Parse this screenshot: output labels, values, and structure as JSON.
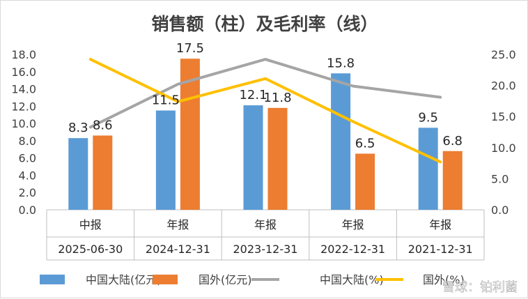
{
  "chart_data": {
    "type": "bar+line",
    "title": "销售额（柱）及毛利率（线）",
    "categories": [
      {
        "period": "中报",
        "date": "2025-06-30"
      },
      {
        "period": "年报",
        "date": "2024-12-31"
      },
      {
        "period": "年报",
        "date": "2023-12-31"
      },
      {
        "period": "年报",
        "date": "2022-12-31"
      },
      {
        "period": "年报",
        "date": "2021-12-31"
      }
    ],
    "bar_series": [
      {
        "name": "中国大陆(亿元)",
        "color": "#5b9bd5",
        "values": [
          8.3,
          11.5,
          12.1,
          15.8,
          9.5
        ],
        "labels": [
          "8.3",
          "11.5",
          "12.1",
          "15.8",
          "9.5"
        ]
      },
      {
        "name": "国外(亿元)",
        "color": "#ed7d31",
        "values": [
          8.6,
          17.5,
          11.8,
          6.5,
          6.8
        ],
        "labels": [
          "8.6",
          "17.5",
          "11.8",
          "6.5",
          "6.8"
        ]
      }
    ],
    "line_series": [
      {
        "name": "中国大陆(%)",
        "color": "#a5a5a5",
        "values": [
          13.3,
          20.2,
          24.2,
          19.9,
          18.1
        ]
      },
      {
        "name": "国外(%)",
        "color": "#ffc000",
        "values": [
          24.2,
          17.4,
          21.1,
          14.2,
          7.7
        ]
      }
    ],
    "y_left": {
      "min": 0,
      "max": 18,
      "step": 2,
      "tick_labels": [
        "0.0",
        "2.0",
        "4.0",
        "6.0",
        "8.0",
        "10.0",
        "12.0",
        "14.0",
        "16.0",
        "18.0"
      ]
    },
    "y_right": {
      "min": 0,
      "max": 25,
      "step": 5,
      "tick_labels": [
        "0.0",
        "5.0",
        "10.0",
        "15.0",
        "20.0",
        "25.0"
      ]
    },
    "legend_position": "bottom"
  },
  "watermark": "雪球：铂利菌"
}
